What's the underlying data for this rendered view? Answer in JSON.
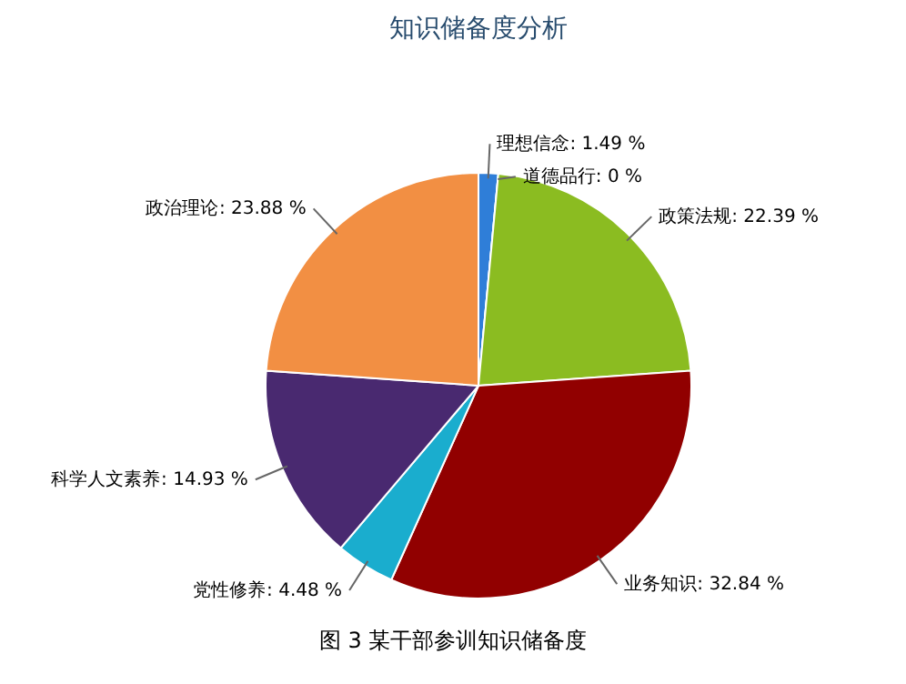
{
  "chart_data": {
    "type": "pie",
    "title": "知识储备度分析",
    "categories": [
      "理想信念",
      "道德品行",
      "政策法规",
      "业务知识",
      "党性修养",
      "科学人文素养",
      "政治理论"
    ],
    "values": [
      1.49,
      0,
      22.39,
      32.84,
      4.48,
      14.93,
      23.88
    ],
    "colors": [
      "#2f7ed8",
      "#0d233a",
      "#8bbc21",
      "#910000",
      "#1aadce",
      "#492970",
      "#f28f43"
    ],
    "value_labels": [
      ": 1.49 %",
      ": 0 %",
      ": 22.39 %",
      ": 32.84 %",
      ": 4.48 %",
      ": 14.93 %",
      ": 23.88 %"
    ],
    "annotations": [
      "图 3 某干部参训知识储备度"
    ]
  }
}
